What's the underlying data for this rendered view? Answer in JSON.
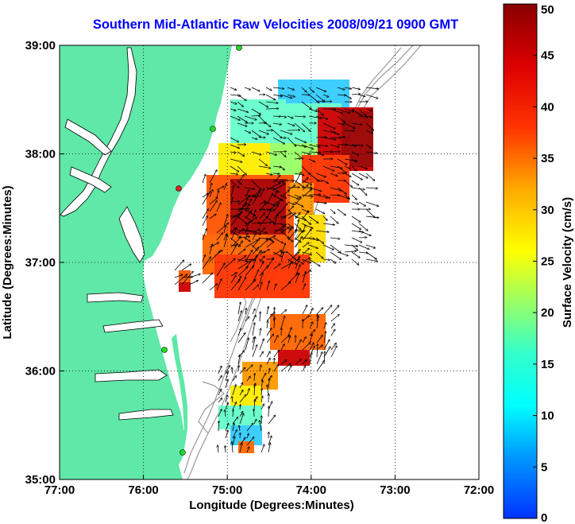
{
  "title": "Southern Mid-Atlantic Raw Velocities 2008/09/21 0900 GMT",
  "x_axis": {
    "label": "Longitude (Degrees:Minutes)",
    "ticks": [
      "77:00",
      "76:00",
      "75:00",
      "74:00",
      "73:00",
      "72:00"
    ],
    "range": [
      -77,
      -72
    ]
  },
  "y_axis": {
    "label": "Latitude (Degrees:Minutes)",
    "ticks": [
      "39:00",
      "38:00",
      "37:00",
      "36:00",
      "35:00"
    ],
    "range": [
      35,
      39
    ]
  },
  "colorbar": {
    "label": "Surface Velocity (cm/s)",
    "ticks": [
      "50",
      "45",
      "40",
      "35",
      "30",
      "25",
      "20",
      "15",
      "10",
      "5",
      "0"
    ],
    "range": [
      0,
      50
    ]
  },
  "colors": {
    "land": "#5fe8a8",
    "title": "#0000ff",
    "bathymetry": "#999999",
    "stations": "#22dd22",
    "station_red": "#dd2222"
  },
  "grid": true
}
